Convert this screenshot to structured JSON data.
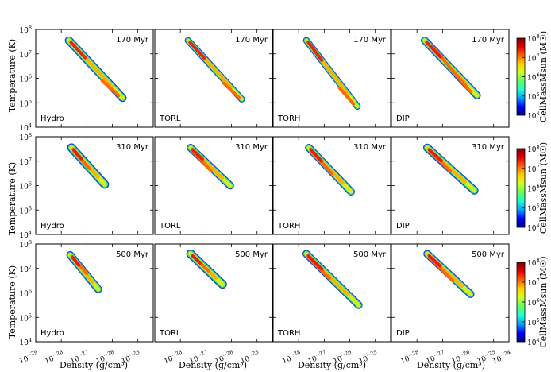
{
  "chart_data": {
    "type": "heatmap",
    "description_text": {
      "ylabel": "Temperature  (K)",
      "xlabel": "Density  (g/cm³)",
      "colorbar_label": "CellMassMsun  (M☉)"
    },
    "x_scale": "log",
    "y_scale": "log",
    "xlim_log10": [
      -29,
      -24.4
    ],
    "ylim_log10": [
      4,
      8
    ],
    "x_tick_exponents": [
      -29,
      -28,
      -27,
      -26,
      -25
    ],
    "x_tick_exponents_last_col": [
      -28,
      -27,
      -26,
      -25,
      -24
    ],
    "y_tick_exponents": [
      4,
      5,
      6,
      7,
      8
    ],
    "colorbar": {
      "scale": "log",
      "range_log10": [
        4,
        8
      ],
      "tick_exponents": [
        4,
        5,
        6,
        7,
        8
      ],
      "colormap": [
        "#00007f",
        "#0000ff",
        "#00a0ff",
        "#20ffd0",
        "#60ff60",
        "#d0ff20",
        "#ffd000",
        "#ff6000",
        "#e00000",
        "#800000"
      ]
    },
    "models": [
      "Hydro",
      "TORL",
      "TORH",
      "DIP"
    ],
    "times": [
      "170 Myr",
      "310 Myr",
      "500 Myr"
    ],
    "panels": [
      {
        "time": "170 Myr",
        "model": "Hydro",
        "ridge": [
          [
            -27.7,
            7.55
          ],
          [
            -25.6,
            5.2
          ]
        ],
        "width": 0.32,
        "core": [
          [
            -26.4,
            5.9
          ],
          [
            -25.75,
            5.3
          ]
        ]
      },
      {
        "time": "170 Myr",
        "model": "TORL",
        "ridge": [
          [
            -27.7,
            7.55
          ],
          [
            -25.6,
            5.15
          ]
        ],
        "width": 0.26,
        "core": [
          [
            -26.3,
            5.8
          ],
          [
            -25.7,
            5.2
          ]
        ]
      },
      {
        "time": "170 Myr",
        "model": "TORH",
        "ridge": [
          [
            -27.7,
            7.55
          ],
          [
            -25.7,
            4.85
          ]
        ],
        "width": 0.26,
        "core": [
          [
            -26.4,
            5.6
          ],
          [
            -25.85,
            4.95
          ]
        ]
      },
      {
        "time": "170 Myr",
        "model": "DIP",
        "ridge": [
          [
            -27.7,
            7.55
          ],
          [
            -25.65,
            5.3
          ]
        ],
        "width": 0.3,
        "core": [
          [
            -27.4,
            7.3
          ],
          [
            -25.9,
            5.45
          ]
        ]
      },
      {
        "time": "310 Myr",
        "model": "Hydro",
        "ridge": [
          [
            -27.6,
            7.55
          ],
          [
            -26.3,
            6.05
          ]
        ],
        "width": 0.34,
        "core": [
          [
            -27.5,
            7.4
          ],
          [
            -26.9,
            6.7
          ]
        ]
      },
      {
        "time": "310 Myr",
        "model": "TORL",
        "ridge": [
          [
            -27.6,
            7.55
          ],
          [
            -26.05,
            6.0
          ]
        ],
        "width": 0.3,
        "core": [
          [
            -27.5,
            7.4
          ],
          [
            -26.8,
            6.6
          ]
        ]
      },
      {
        "time": "310 Myr",
        "model": "TORH",
        "ridge": [
          [
            -27.6,
            7.55
          ],
          [
            -25.95,
            5.75
          ]
        ],
        "width": 0.3,
        "core": [
          [
            -27.5,
            7.4
          ],
          [
            -26.7,
            6.5
          ]
        ]
      },
      {
        "time": "310 Myr",
        "model": "DIP",
        "ridge": [
          [
            -27.6,
            7.55
          ],
          [
            -25.75,
            5.8
          ]
        ],
        "width": 0.32,
        "core": [
          [
            -27.5,
            7.4
          ],
          [
            -26.7,
            6.6
          ]
        ]
      },
      {
        "time": "500 Myr",
        "model": "Hydro",
        "ridge": [
          [
            -27.65,
            7.55
          ],
          [
            -26.55,
            6.15
          ]
        ],
        "width": 0.3,
        "core": [
          [
            -27.55,
            7.45
          ],
          [
            -27.0,
            6.8
          ]
        ]
      },
      {
        "time": "500 Myr",
        "model": "TORL",
        "ridge": [
          [
            -27.6,
            7.6
          ],
          [
            -26.35,
            6.35
          ]
        ],
        "width": 0.34,
        "core": [
          [
            -27.5,
            7.5
          ],
          [
            -26.9,
            6.9
          ]
        ]
      },
      {
        "time": "500 Myr",
        "model": "TORH",
        "ridge": [
          [
            -27.7,
            7.6
          ],
          [
            -25.65,
            5.5
          ]
        ],
        "width": 0.3,
        "core": [
          [
            -27.6,
            7.45
          ],
          [
            -26.8,
            6.6
          ]
        ]
      },
      {
        "time": "500 Myr",
        "model": "DIP",
        "ridge": [
          [
            -27.6,
            7.6
          ],
          [
            -25.9,
            5.95
          ]
        ],
        "width": 0.3,
        "core": [
          [
            -27.5,
            7.45
          ],
          [
            -26.6,
            6.5
          ]
        ]
      }
    ]
  }
}
